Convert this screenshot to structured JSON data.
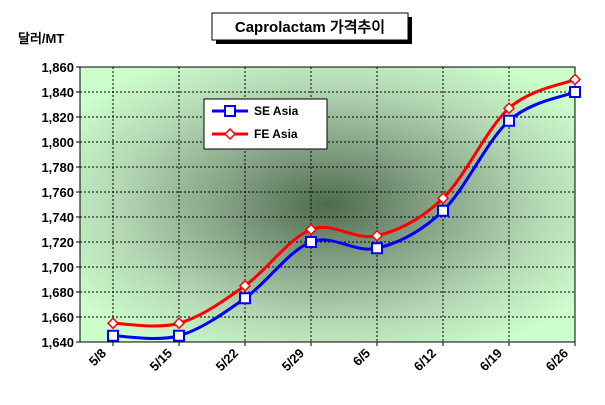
{
  "chart_data": {
    "type": "line",
    "title": "Caprolactam 가격추이",
    "ylabel": "달러/MT",
    "xlabel": "",
    "categories": [
      "5/8",
      "5/15",
      "5/22",
      "5/29",
      "6/5",
      "6/12",
      "6/19",
      "6/26"
    ],
    "ylim": [
      1640,
      1860
    ],
    "yticks": [
      1640,
      1660,
      1680,
      1700,
      1720,
      1740,
      1760,
      1780,
      1800,
      1820,
      1840,
      1860
    ],
    "ytick_labels": [
      "1,640",
      "1,660",
      "1,680",
      "1,700",
      "1,720",
      "1,740",
      "1,760",
      "1,780",
      "1,800",
      "1,820",
      "1,840",
      "1,860"
    ],
    "grid": true,
    "legend_position": "top-left",
    "series": [
      {
        "name": "SE Asia",
        "values": [
          1645,
          1645,
          1675,
          1720,
          1715,
          1745,
          1817,
          1840
        ],
        "color": "#0000ff",
        "marker": "square"
      },
      {
        "name": "FE Asia",
        "values": [
          1655,
          1655,
          1685,
          1730,
          1725,
          1755,
          1827,
          1850
        ],
        "color": "#ff0000",
        "marker": "diamond"
      }
    ],
    "colors": {
      "plot_bg_light": "#ccffcc",
      "plot_bg_dark": "#4d6b4d",
      "grid": "#000000"
    }
  }
}
